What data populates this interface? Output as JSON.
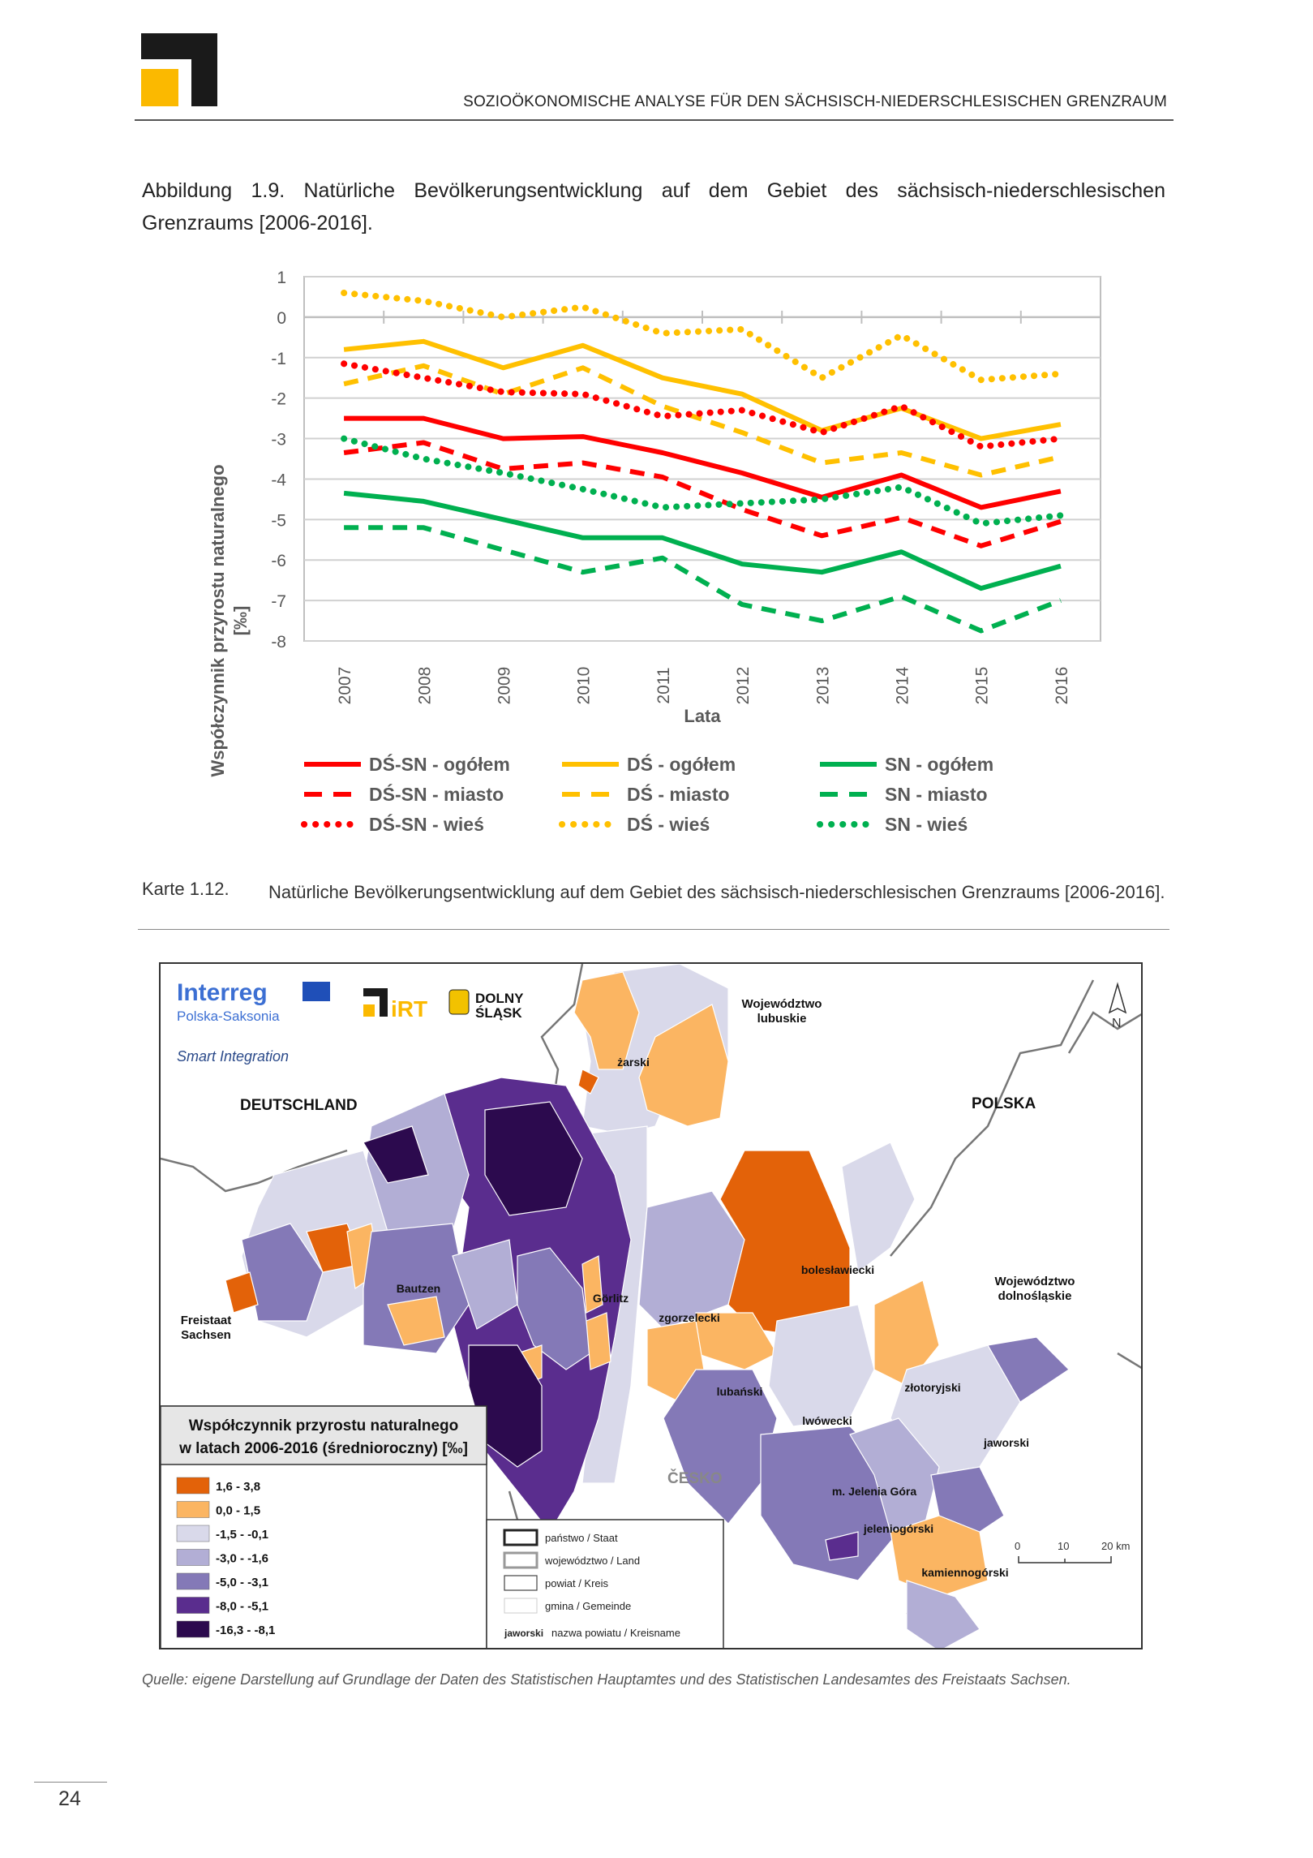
{
  "header": {
    "title": "SOZIOÖKONOMISCHE ANALYSE FÜR DEN SÄCHSISCH-NIEDERSCHLESISCHEN GRENZRAUM"
  },
  "figure": {
    "caption": "Abbildung 1.9.  Natürliche Bevölkerungsentwicklung auf dem Gebiet des sächsisch-niederschlesischen Grenzraums [2006-2016]."
  },
  "chart_data": {
    "type": "line",
    "title": "",
    "xlabel": "Lata",
    "ylabel": "Współczynnik przyrostu naturalnego [‰]",
    "ylim": [
      -8,
      1
    ],
    "yticks": [
      "1",
      "0",
      "-1",
      "-2",
      "-3",
      "-4",
      "-5",
      "-6",
      "-7",
      "-8"
    ],
    "x": [
      "2007",
      "2008",
      "2009",
      "2010",
      "2011",
      "2012",
      "2013",
      "2014",
      "2015",
      "2016"
    ],
    "grid": true,
    "legend_placement": "bottom",
    "series": [
      {
        "name": "DŚ-SN - ogółem",
        "color": "#ff0000",
        "style": "solid",
        "values": [
          -2.5,
          -2.5,
          -3.0,
          -2.95,
          -3.35,
          -3.85,
          -4.45,
          -3.9,
          -4.7,
          -4.3
        ]
      },
      {
        "name": "DŚ - ogółem",
        "color": "#ffc000",
        "style": "solid",
        "values": [
          -0.8,
          -0.6,
          -1.25,
          -0.7,
          -1.5,
          -1.9,
          -2.8,
          -2.25,
          -3.0,
          -2.65
        ]
      },
      {
        "name": "SN - ogółem",
        "color": "#00b050",
        "style": "solid",
        "values": [
          -4.35,
          -4.55,
          -5.0,
          -5.45,
          -5.45,
          -6.1,
          -6.3,
          -5.8,
          -6.7,
          -6.15
        ]
      },
      {
        "name": "DŚ-SN - miasto",
        "color": "#ff0000",
        "style": "dashed",
        "values": [
          -3.35,
          -3.1,
          -3.75,
          -3.6,
          -3.95,
          -4.75,
          -5.4,
          -4.95,
          -5.65,
          -5.05
        ]
      },
      {
        "name": "DŚ - miasto",
        "color": "#ffc000",
        "style": "dashed",
        "values": [
          -1.65,
          -1.2,
          -1.9,
          -1.25,
          -2.2,
          -2.85,
          -3.6,
          -3.35,
          -3.9,
          -3.45
        ]
      },
      {
        "name": "SN - miasto",
        "color": "#00b050",
        "style": "dashed",
        "values": [
          -5.2,
          -5.2,
          -5.75,
          -6.3,
          -5.95,
          -7.1,
          -7.5,
          -6.9,
          -7.75,
          -7.0
        ]
      },
      {
        "name": "DŚ-SN - wieś",
        "color": "#ff0000",
        "style": "dotted",
        "values": [
          -1.15,
          -1.5,
          -1.85,
          -1.9,
          -2.45,
          -2.3,
          -2.85,
          -2.2,
          -3.2,
          -3.0
        ]
      },
      {
        "name": "DŚ - wieś",
        "color": "#ffc000",
        "style": "dotted",
        "values": [
          0.6,
          0.4,
          0.0,
          0.25,
          -0.4,
          -0.3,
          -1.5,
          -0.45,
          -1.55,
          -1.4
        ]
      },
      {
        "name": "SN - wieś",
        "color": "#00b050",
        "style": "dotted",
        "values": [
          -3.0,
          -3.5,
          -3.85,
          -4.25,
          -4.7,
          -4.6,
          -4.5,
          -4.2,
          -5.1,
          -4.9
        ]
      }
    ]
  },
  "map_caption": {
    "number": "Karte 1.12.",
    "text": "Natürliche Bevölkerungsentwicklung auf dem Gebiet des sächsisch-niederschlesischen Grenzraums [2006-2016]."
  },
  "map": {
    "logos": {
      "interreg": "Interreg",
      "interreg_sub": "Polska-Saksonia",
      "project": "Smart Integration",
      "irt": "iRT",
      "dolny": "DOLNY",
      "slask": "ŚLĄSK"
    },
    "labels": {
      "deutschland": "DEUTSCHLAND",
      "polska": "POLSKA",
      "cesko": "ČESKO",
      "lubuskie1": "Województwo",
      "lubuskie2": "lubuskie",
      "dolnoslaskie1": "Województwo",
      "dolnoslaskie2": "dolnośląskie",
      "sachsen1": "Freistaat",
      "sachsen2": "Sachsen",
      "zarski": "żarski",
      "bautzen": "Bautzen",
      "goerlitz": "Görlitz",
      "zgorzelecki": "zgorzelecki",
      "boleslawiecki": "bolesławiecki",
      "lubanski": "lubański",
      "lwowecki": "lwówecki",
      "zlotoryjski": "złotoryjski",
      "jaworski": "jaworski",
      "jelenia": "m. Jelenia Góra",
      "jeleniogorski": "jeleniogórski",
      "kamiennogorski": "kamiennogórski",
      "north": "N"
    },
    "legend": {
      "title1": "Współczynnik przyrostu naturalnego",
      "title2": "w latach 2006-2016 (średnioroczny) [‰]",
      "classes": [
        {
          "label": "1,6 - 3,8",
          "color": "#e36209"
        },
        {
          "label": "0,0 - 1,5",
          "color": "#fbb562"
        },
        {
          "label": "-1,5 - -0,1",
          "color": "#d9d9ea"
        },
        {
          "label": "-3,0 - -1,6",
          "color": "#b2aed5"
        },
        {
          "label": "-5,0 - -3,1",
          "color": "#8479b7"
        },
        {
          "label": "-8,0 - -5,1",
          "color": "#5a2d8e"
        },
        {
          "label": "-16,3 - -8,1",
          "color": "#2c0a4e"
        }
      ]
    },
    "boundaries": [
      {
        "label": "państwo / Staat"
      },
      {
        "label": "województwo / Land"
      },
      {
        "label": "powiat / Kreis"
      },
      {
        "label": "gmina / Gemeinde"
      }
    ],
    "boundary_note_bold": "jaworski",
    "boundary_note": "nazwa powiatu / Kreisname",
    "scale": [
      "0",
      "10",
      "20 km"
    ]
  },
  "source": "Quelle: eigene Darstellung auf Grundlage der Daten des Statistischen Hauptamtes und des Statistischen Landesamtes des Freistaats Sachsen.",
  "page_number": "24"
}
